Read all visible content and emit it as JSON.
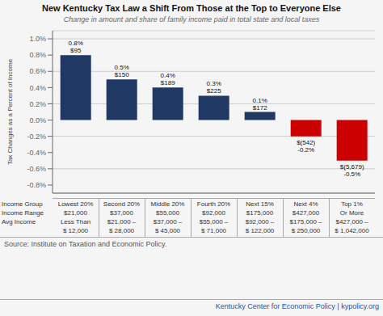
{
  "chart_data": {
    "type": "bar",
    "title": "New Kentucky Tax Law a Shift From Those at the Top to Everyone Else",
    "subtitle": "Change in amount and share of family income paid in total state and local taxes",
    "ylabel": "Tax Changes as a Percent of Income",
    "categories": [
      "Lowest 20%",
      "Second 20%",
      "Middle 20%",
      "Fourth 20%",
      "Next 15%",
      "Next 4%",
      "Top 1%"
    ],
    "values": [
      0.8,
      0.5,
      0.4,
      0.3,
      0.1,
      -0.2,
      -0.5
    ],
    "value_labels": [
      "0.8%",
      "0.5%",
      "0.4%",
      "0.3%",
      "0.1%",
      "-0.2%",
      "-0.5%"
    ],
    "data_labels": true,
    "annotations": [
      "$95",
      "$150",
      "$189",
      "$225",
      "$172",
      "$(542)",
      "$(5,679)"
    ],
    "colors": [
      "#1f3864",
      "#1f3864",
      "#1f3864",
      "#1f3864",
      "#1f3864",
      "#cc0000",
      "#cc0000"
    ],
    "ylim": [
      -0.9,
      1.1
    ],
    "yticks": [
      {
        "value": -0.8,
        "label": "-0.8%"
      },
      {
        "value": -0.6,
        "label": "-0.6%"
      },
      {
        "value": -0.4,
        "label": "-0.4%"
      },
      {
        "value": -0.2,
        "label": "-0.2%"
      },
      {
        "value": 0.0,
        "label": "0.0%"
      },
      {
        "value": 0.2,
        "label": "0.2%"
      },
      {
        "value": 0.4,
        "label": "0.4%"
      },
      {
        "value": 0.6,
        "label": "0.6%"
      },
      {
        "value": 0.8,
        "label": "0.8%"
      },
      {
        "value": 1.0,
        "label": "1.0%"
      }
    ],
    "grid": true,
    "tick_labels": "y",
    "table": {
      "row_labels": [
        "Income Group",
        "Income Range",
        "Avg Income"
      ],
      "rows": [
        [
          "$21,000",
          "$37,000",
          "$55,000",
          "$92,000",
          "$175,000",
          "$427,000",
          "Or More"
        ],
        [
          "Less Than",
          "$21,000 –",
          "$37,000 –",
          "$55,000 –",
          "$92,000 –",
          "$175,000 –",
          "$427,000 –"
        ],
        [
          "$ 12,000",
          "$ 28,000",
          "$ 45,000",
          "$ 71,000",
          "$ 122,000",
          "$ 250,000",
          "$ 1,042,000"
        ]
      ]
    },
    "source": "Source: Institute on Taxation and Economic Policy.",
    "branding": "Kentucky Center for Economic Policy | kypolicy.org"
  }
}
